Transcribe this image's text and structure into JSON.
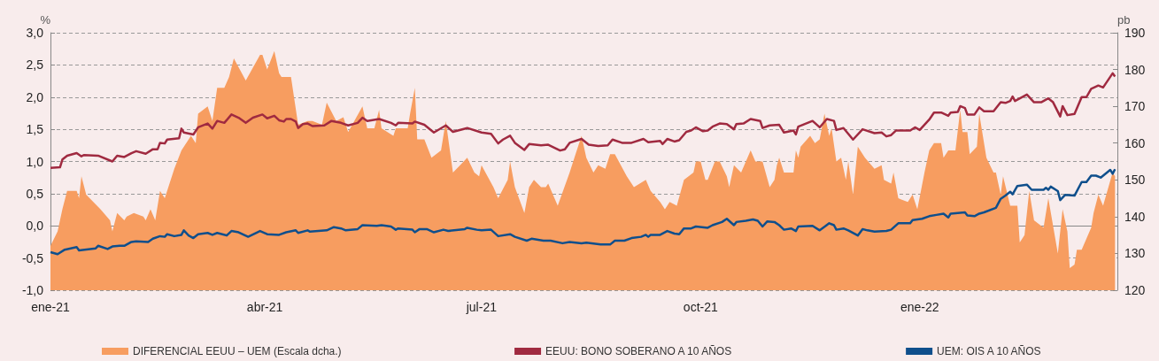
{
  "chart_data": {
    "type": "line",
    "ylabel": "%",
    "y2label": "pb",
    "xlim": [
      "2021-01-01",
      "2022-03-25"
    ],
    "xticks": [
      {
        "value": "2021-01-01",
        "label": "ene-21"
      },
      {
        "value": "2021-04-01",
        "label": "abr-21"
      },
      {
        "value": "2021-07-01",
        "label": "jul-21"
      },
      {
        "value": "2021-10-01",
        "label": "oct-21"
      },
      {
        "value": "2022-01-01",
        "label": "ene-22"
      }
    ],
    "ylim": [
      -1,
      3
    ],
    "yticks": [
      {
        "value": -1,
        "label": "-1,0"
      },
      {
        "value": -0.5,
        "label": "-0,5"
      },
      {
        "value": 0,
        "label": "0,0"
      },
      {
        "value": 0.5,
        "label": "0,5"
      },
      {
        "value": 1,
        "label": "1,0"
      },
      {
        "value": 1.5,
        "label": "1,5"
      },
      {
        "value": 2,
        "label": "2,0"
      },
      {
        "value": 2.5,
        "label": "2,5"
      },
      {
        "value": 3,
        "label": "3,0"
      }
    ],
    "y2lim": [
      120,
      190
    ],
    "y2ticks": [
      120,
      130,
      140,
      150,
      160,
      170,
      180,
      190
    ],
    "grid": "y",
    "legend": "bottom",
    "series": [
      {
        "name": "DIFERENCIAL EEUU – UEM (Escala dcha.)",
        "type": "area",
        "axis": "y2",
        "color": "#f79d60",
        "x": [
          "2021-01-01",
          "2021-01-04",
          "2021-01-06",
          "2021-01-08",
          "2021-01-12",
          "2021-01-13",
          "2021-01-14",
          "2021-01-16",
          "2021-01-19",
          "2021-01-22",
          "2021-01-26",
          "2021-01-27",
          "2021-01-29",
          "2021-02-01",
          "2021-02-02",
          "2021-02-05",
          "2021-02-09",
          "2021-02-10",
          "2021-02-12",
          "2021-02-14",
          "2021-02-16",
          "2021-02-18",
          "2021-02-22",
          "2021-02-25",
          "2021-03-01",
          "2021-03-03",
          "2021-03-04",
          "2021-03-08",
          "2021-03-10",
          "2021-03-12",
          "2021-03-15",
          "2021-03-17",
          "2021-03-19",
          "2021-03-24",
          "2021-03-30",
          "2021-03-31",
          "2021-04-02",
          "2021-04-05",
          "2021-04-07",
          "2021-04-08",
          "2021-04-12",
          "2021-04-15",
          "2021-04-19",
          "2021-04-21",
          "2021-04-25",
          "2021-04-27",
          "2021-05-01",
          "2021-05-04",
          "2021-05-06",
          "2021-05-12",
          "2021-05-14",
          "2021-05-17",
          "2021-05-19",
          "2021-05-20",
          "2021-05-25",
          "2021-05-26",
          "2021-05-28",
          "2021-05-31",
          "2021-06-01",
          "2021-06-03",
          "2021-06-04",
          "2021-06-07",
          "2021-06-10",
          "2021-06-14",
          "2021-06-16",
          "2021-06-19",
          "2021-06-22",
          "2021-06-25",
          "2021-06-28",
          "2021-06-30",
          "2021-07-01",
          "2021-07-06",
          "2021-07-08",
          "2021-07-12",
          "2021-07-13",
          "2021-07-15",
          "2021-07-19",
          "2021-07-21",
          "2021-07-23",
          "2021-07-26",
          "2021-07-28",
          "2021-07-29",
          "2021-08-02",
          "2021-08-07",
          "2021-08-09",
          "2021-08-12",
          "2021-08-14",
          "2021-08-17",
          "2021-08-19",
          "2021-08-22",
          "2021-08-24",
          "2021-08-26",
          "2021-08-31",
          "2021-09-03",
          "2021-09-08",
          "2021-09-10",
          "2021-09-14",
          "2021-09-16",
          "2021-09-18",
          "2021-09-21",
          "2021-09-24",
          "2021-09-28",
          "2021-09-29",
          "2021-10-01",
          "2021-10-03",
          "2021-10-04",
          "2021-10-07",
          "2021-10-09",
          "2021-10-12",
          "2021-10-13",
          "2021-10-15",
          "2021-10-18",
          "2021-10-22",
          "2021-10-24",
          "2021-10-27",
          "2021-10-30",
          "2021-11-01",
          "2021-11-02",
          "2021-11-03",
          "2021-11-05",
          "2021-11-09",
          "2021-11-10",
          "2021-11-11",
          "2021-11-12",
          "2021-11-16",
          "2021-11-18",
          "2021-11-20",
          "2021-11-22",
          "2021-11-24",
          "2021-11-25",
          "2021-11-27",
          "2021-11-29",
          "2021-12-01",
          "2021-12-02",
          "2021-12-04",
          "2021-12-06",
          "2021-12-09",
          "2021-12-13",
          "2021-12-16",
          "2021-12-17",
          "2021-12-20",
          "2021-12-21",
          "2021-12-23",
          "2021-12-27",
          "2021-12-29",
          "2021-12-31",
          "2022-01-03",
          "2022-01-05",
          "2022-01-07",
          "2022-01-10",
          "2022-01-11",
          "2022-01-13",
          "2022-01-16",
          "2022-01-18",
          "2022-01-19",
          "2022-01-21",
          "2022-01-22",
          "2022-01-25",
          "2022-01-26",
          "2022-01-29",
          "2022-02-01",
          "2022-02-02",
          "2022-02-04",
          "2022-02-05",
          "2022-02-08",
          "2022-02-09",
          "2022-02-11",
          "2022-02-12",
          "2022-02-14",
          "2022-02-16",
          "2022-02-18",
          "2022-02-22",
          "2022-02-24",
          "2022-02-28",
          "2022-03-02",
          "2022-03-04",
          "2022-03-05",
          "2022-03-07",
          "2022-03-08",
          "2022-03-10",
          "2022-03-14",
          "2022-03-15",
          "2022-03-17",
          "2022-03-19",
          "2022-03-23",
          "2022-03-24"
        ],
        "values": [
          132,
          136,
          142,
          147,
          147,
          145,
          151,
          146,
          144,
          142,
          139,
          136,
          141,
          139,
          140,
          141,
          140,
          139,
          142,
          139,
          147,
          145,
          153,
          158,
          162,
          160,
          168,
          170,
          166,
          175,
          175,
          178,
          183,
          177,
          184,
          184,
          180,
          185,
          179,
          178,
          178,
          165,
          166,
          166,
          165,
          171,
          166,
          167,
          163,
          170,
          164,
          164,
          169,
          164,
          162,
          164,
          164,
          164,
          168,
          175,
          161,
          161,
          156,
          158,
          166,
          152,
          154,
          156,
          152,
          151,
          154,
          148,
          145,
          150,
          155,
          148,
          141,
          148,
          150,
          148,
          148,
          149,
          143,
          152,
          156,
          162,
          156,
          152,
          154,
          153,
          157,
          157,
          151,
          148,
          150,
          147,
          144,
          142,
          144,
          143,
          150,
          152,
          155,
          155,
          150,
          150,
          155,
          155,
          151,
          148,
          154,
          152,
          158,
          155,
          155,
          148,
          150,
          154,
          156,
          152,
          152,
          158,
          156,
          159,
          162,
          160,
          161,
          168,
          162,
          164,
          155,
          156,
          150,
          155,
          146,
          159,
          156,
          153,
          154,
          150,
          149,
          152,
          145,
          144,
          146,
          142,
          152,
          158,
          160,
          160,
          156,
          158,
          158,
          169,
          163,
          163,
          157,
          159,
          168,
          156,
          152,
          152,
          146,
          151,
          143,
          143,
          143,
          133,
          135,
          147,
          139,
          137,
          145,
          130,
          142,
          136,
          126,
          127,
          131,
          131,
          137,
          141,
          146,
          143,
          152,
          151
        ]
      },
      {
        "name": "EEUU: BONO SOBERANO A 10 AÑOS",
        "type": "line",
        "color": "#a02a40",
        "x": [
          "2021-01-01",
          "2021-01-05",
          "2021-01-06",
          "2021-01-08",
          "2021-01-12",
          "2021-01-14",
          "2021-01-15",
          "2021-01-21",
          "2021-01-27",
          "2021-01-29",
          "2021-02-01",
          "2021-02-04",
          "2021-02-06",
          "2021-02-10",
          "2021-02-13",
          "2021-02-15",
          "2021-02-16",
          "2021-02-18",
          "2021-02-19",
          "2021-02-24",
          "2021-02-25",
          "2021-02-26",
          "2021-03-02",
          "2021-03-04",
          "2021-03-08",
          "2021-03-10",
          "2021-03-12",
          "2021-03-15",
          "2021-03-18",
          "2021-03-21",
          "2021-03-24",
          "2021-03-27",
          "2021-03-31",
          "2021-04-02",
          "2021-04-05",
          "2021-04-07",
          "2021-04-09",
          "2021-04-10",
          "2021-04-12",
          "2021-04-14",
          "2021-04-15",
          "2021-04-17",
          "2021-04-19",
          "2021-04-21",
          "2021-04-26",
          "2021-04-29",
          "2021-05-03",
          "2021-05-06",
          "2021-05-10",
          "2021-05-12",
          "2021-05-14",
          "2021-05-19",
          "2021-05-24",
          "2021-05-26",
          "2021-05-27",
          "2021-06-02",
          "2021-06-03",
          "2021-06-07",
          "2021-06-11",
          "2021-06-16",
          "2021-06-19",
          "2021-06-25",
          "2021-07-01",
          "2021-07-05",
          "2021-07-08",
          "2021-07-10",
          "2021-07-13",
          "2021-07-15",
          "2021-07-19",
          "2021-07-21",
          "2021-07-26",
          "2021-07-29",
          "2021-08-03",
          "2021-08-05",
          "2021-08-07",
          "2021-08-12",
          "2021-08-15",
          "2021-08-19",
          "2021-08-23",
          "2021-08-25",
          "2021-08-29",
          "2021-09-02",
          "2021-09-07",
          "2021-09-09",
          "2021-09-14",
          "2021-09-15",
          "2021-09-17",
          "2021-09-20",
          "2021-09-22",
          "2021-09-25",
          "2021-09-27",
          "2021-09-29",
          "2021-10-02",
          "2021-10-04",
          "2021-10-06",
          "2021-10-09",
          "2021-10-12",
          "2021-10-15",
          "2021-10-16",
          "2021-10-19",
          "2021-10-22",
          "2021-10-26",
          "2021-10-27",
          "2021-10-30",
          "2021-11-03",
          "2021-11-05",
          "2021-11-09",
          "2021-11-10",
          "2021-11-11",
          "2021-11-17",
          "2021-11-20",
          "2021-11-23",
          "2021-11-26",
          "2021-11-27",
          "2021-11-30",
          "2021-12-02",
          "2021-12-04",
          "2021-12-08",
          "2021-12-13",
          "2021-12-16",
          "2021-12-18",
          "2021-12-20",
          "2021-12-22",
          "2021-12-28",
          "2021-12-30",
          "2022-01-01",
          "2022-01-05",
          "2022-01-07",
          "2022-01-10",
          "2022-01-13",
          "2022-01-14",
          "2022-01-17",
          "2022-01-18",
          "2022-01-20",
          "2022-01-21",
          "2022-01-24",
          "2022-01-26",
          "2022-01-28",
          "2022-02-01",
          "2022-02-04",
          "2022-02-06",
          "2022-02-08",
          "2022-02-09",
          "2022-02-10",
          "2022-02-15",
          "2022-02-18",
          "2022-02-21",
          "2022-02-24",
          "2022-02-26",
          "2022-03-01",
          "2022-03-02",
          "2022-03-04",
          "2022-03-07",
          "2022-03-10",
          "2022-03-12",
          "2022-03-14",
          "2022-03-17",
          "2022-03-19",
          "2022-03-23",
          "2022-03-24"
        ],
        "values": [
          0.9,
          0.91,
          1.03,
          1.09,
          1.13,
          1.08,
          1.1,
          1.09,
          1.0,
          1.09,
          1.07,
          1.13,
          1.16,
          1.12,
          1.19,
          1.19,
          1.29,
          1.28,
          1.34,
          1.36,
          1.51,
          1.45,
          1.42,
          1.53,
          1.59,
          1.51,
          1.63,
          1.6,
          1.73,
          1.68,
          1.6,
          1.68,
          1.73,
          1.67,
          1.71,
          1.64,
          1.62,
          1.66,
          1.66,
          1.62,
          1.52,
          1.58,
          1.59,
          1.55,
          1.56,
          1.63,
          1.6,
          1.56,
          1.6,
          1.68,
          1.63,
          1.66,
          1.6,
          1.56,
          1.6,
          1.59,
          1.62,
          1.57,
          1.45,
          1.56,
          1.46,
          1.52,
          1.45,
          1.43,
          1.28,
          1.34,
          1.4,
          1.29,
          1.18,
          1.27,
          1.25,
          1.26,
          1.17,
          1.19,
          1.29,
          1.35,
          1.26,
          1.24,
          1.25,
          1.34,
          1.29,
          1.29,
          1.35,
          1.3,
          1.32,
          1.27,
          1.35,
          1.31,
          1.33,
          1.46,
          1.48,
          1.53,
          1.47,
          1.48,
          1.54,
          1.59,
          1.58,
          1.5,
          1.58,
          1.59,
          1.66,
          1.63,
          1.52,
          1.56,
          1.57,
          1.45,
          1.48,
          1.42,
          1.54,
          1.63,
          1.53,
          1.66,
          1.63,
          1.49,
          1.52,
          1.43,
          1.34,
          1.5,
          1.44,
          1.45,
          1.39,
          1.41,
          1.48,
          1.48,
          1.53,
          1.49,
          1.65,
          1.76,
          1.76,
          1.71,
          1.76,
          1.77,
          1.86,
          1.83,
          1.73,
          1.73,
          1.84,
          1.78,
          1.78,
          1.92,
          1.91,
          1.94,
          2.01,
          1.94,
          2.04,
          1.92,
          1.92,
          1.98,
          1.92,
          1.7,
          1.86,
          1.72,
          1.74,
          2.0,
          2.0,
          2.13,
          2.18,
          2.15,
          2.37,
          2.32
        ]
      },
      {
        "name": "UEM: OIS A 10 AÑOS",
        "type": "line",
        "color": "#0f4f8c",
        "x": [
          "2021-01-01",
          "2021-01-04",
          "2021-01-07",
          "2021-01-12",
          "2021-01-13",
          "2021-01-20",
          "2021-01-21",
          "2021-01-25",
          "2021-01-27",
          "2021-01-30",
          "2021-02-01",
          "2021-02-04",
          "2021-02-06",
          "2021-02-11",
          "2021-02-13",
          "2021-02-16",
          "2021-02-18",
          "2021-02-19",
          "2021-02-22",
          "2021-02-25",
          "2021-02-26",
          "2021-02-28",
          "2021-03-02",
          "2021-03-04",
          "2021-03-08",
          "2021-03-10",
          "2021-03-12",
          "2021-03-16",
          "2021-03-18",
          "2021-03-21",
          "2021-03-25",
          "2021-03-30",
          "2021-04-02",
          "2021-04-07",
          "2021-04-10",
          "2021-04-14",
          "2021-04-15",
          "2021-04-19",
          "2021-04-20",
          "2021-04-27",
          "2021-04-30",
          "2021-05-03",
          "2021-05-05",
          "2021-05-10",
          "2021-05-12",
          "2021-05-18",
          "2021-05-20",
          "2021-05-24",
          "2021-05-26",
          "2021-05-27",
          "2021-06-02",
          "2021-06-03",
          "2021-06-05",
          "2021-06-08",
          "2021-06-11",
          "2021-06-15",
          "2021-06-17",
          "2021-06-24",
          "2021-06-25",
          "2021-06-29",
          "2021-07-01",
          "2021-07-05",
          "2021-07-08",
          "2021-07-13",
          "2021-07-15",
          "2021-07-20",
          "2021-07-22",
          "2021-07-27",
          "2021-07-30",
          "2021-08-04",
          "2021-08-07",
          "2021-08-12",
          "2021-08-14",
          "2021-08-20",
          "2021-08-24",
          "2021-08-26",
          "2021-08-30",
          "2021-09-02",
          "2021-09-06",
          "2021-09-08",
          "2021-09-09",
          "2021-09-10",
          "2021-09-14",
          "2021-09-17",
          "2021-09-20",
          "2021-09-22",
          "2021-09-24",
          "2021-09-27",
          "2021-09-29",
          "2021-10-04",
          "2021-10-06",
          "2021-10-10",
          "2021-10-12",
          "2021-10-15",
          "2021-10-16",
          "2021-10-20",
          "2021-10-23",
          "2021-10-25",
          "2021-10-27",
          "2021-10-29",
          "2021-11-01",
          "2021-11-03",
          "2021-11-05",
          "2021-11-08",
          "2021-11-10",
          "2021-11-11",
          "2021-11-17",
          "2021-11-20",
          "2021-11-24",
          "2021-11-26",
          "2021-11-27",
          "2021-11-30",
          "2021-12-02",
          "2021-12-06",
          "2021-12-08",
          "2021-12-10",
          "2021-12-13",
          "2021-12-18",
          "2021-12-20",
          "2021-12-23",
          "2021-12-28",
          "2021-12-29",
          "2022-01-02",
          "2022-01-05",
          "2022-01-08",
          "2022-01-11",
          "2022-01-13",
          "2022-01-14",
          "2022-01-20",
          "2022-01-21",
          "2022-01-24",
          "2022-01-26",
          "2022-01-28",
          "2022-02-02",
          "2022-02-04",
          "2022-02-06",
          "2022-02-08",
          "2022-02-09",
          "2022-02-11",
          "2022-02-15",
          "2022-02-17",
          "2022-02-22",
          "2022-02-23",
          "2022-02-24",
          "2022-02-25",
          "2022-02-28",
          "2022-03-01",
          "2022-03-03",
          "2022-03-07",
          "2022-03-10",
          "2022-03-12",
          "2022-03-14",
          "2022-03-16",
          "2022-03-18",
          "2022-03-22",
          "2022-03-23",
          "2022-03-24"
        ],
        "values": [
          -0.41,
          -0.44,
          -0.37,
          -0.33,
          -0.38,
          -0.35,
          -0.31,
          -0.36,
          -0.32,
          -0.31,
          -0.31,
          -0.25,
          -0.24,
          -0.25,
          -0.2,
          -0.16,
          -0.17,
          -0.13,
          -0.16,
          -0.14,
          -0.07,
          -0.15,
          -0.19,
          -0.13,
          -0.11,
          -0.14,
          -0.11,
          -0.15,
          -0.08,
          -0.1,
          -0.17,
          -0.08,
          -0.13,
          -0.14,
          -0.1,
          -0.07,
          -0.11,
          -0.07,
          -0.09,
          -0.07,
          -0.02,
          -0.04,
          -0.07,
          -0.05,
          0.01,
          0.0,
          0.01,
          -0.01,
          -0.06,
          -0.04,
          -0.06,
          -0.1,
          -0.05,
          -0.05,
          -0.1,
          -0.06,
          -0.08,
          -0.05,
          -0.03,
          -0.06,
          -0.07,
          -0.06,
          -0.16,
          -0.13,
          -0.17,
          -0.23,
          -0.2,
          -0.23,
          -0.23,
          -0.27,
          -0.25,
          -0.27,
          -0.26,
          -0.29,
          -0.29,
          -0.23,
          -0.23,
          -0.19,
          -0.17,
          -0.14,
          -0.17,
          -0.14,
          -0.14,
          -0.08,
          -0.12,
          -0.13,
          -0.04,
          -0.04,
          -0.01,
          -0.03,
          0.01,
          0.06,
          0.11,
          0.01,
          0.06,
          0.08,
          0.1,
          0.08,
          -0.01,
          0.07,
          0.06,
          0.01,
          -0.06,
          -0.04,
          -0.08,
          -0.01,
          0.0,
          -0.07,
          0.04,
          0.01,
          -0.06,
          -0.04,
          -0.07,
          -0.15,
          -0.05,
          -0.07,
          -0.09,
          -0.08,
          -0.06,
          0.04,
          0.04,
          0.09,
          0.11,
          0.15,
          0.17,
          0.19,
          0.13,
          0.19,
          0.21,
          0.16,
          0.15,
          0.19,
          0.21,
          0.28,
          0.42,
          0.47,
          0.53,
          0.49,
          0.62,
          0.64,
          0.56,
          0.56,
          0.59,
          0.56,
          0.61,
          0.54,
          0.4,
          0.48,
          0.47,
          0.68,
          0.68,
          0.78,
          0.78,
          0.75,
          0.87,
          0.81,
          0.88
        ]
      }
    ]
  }
}
